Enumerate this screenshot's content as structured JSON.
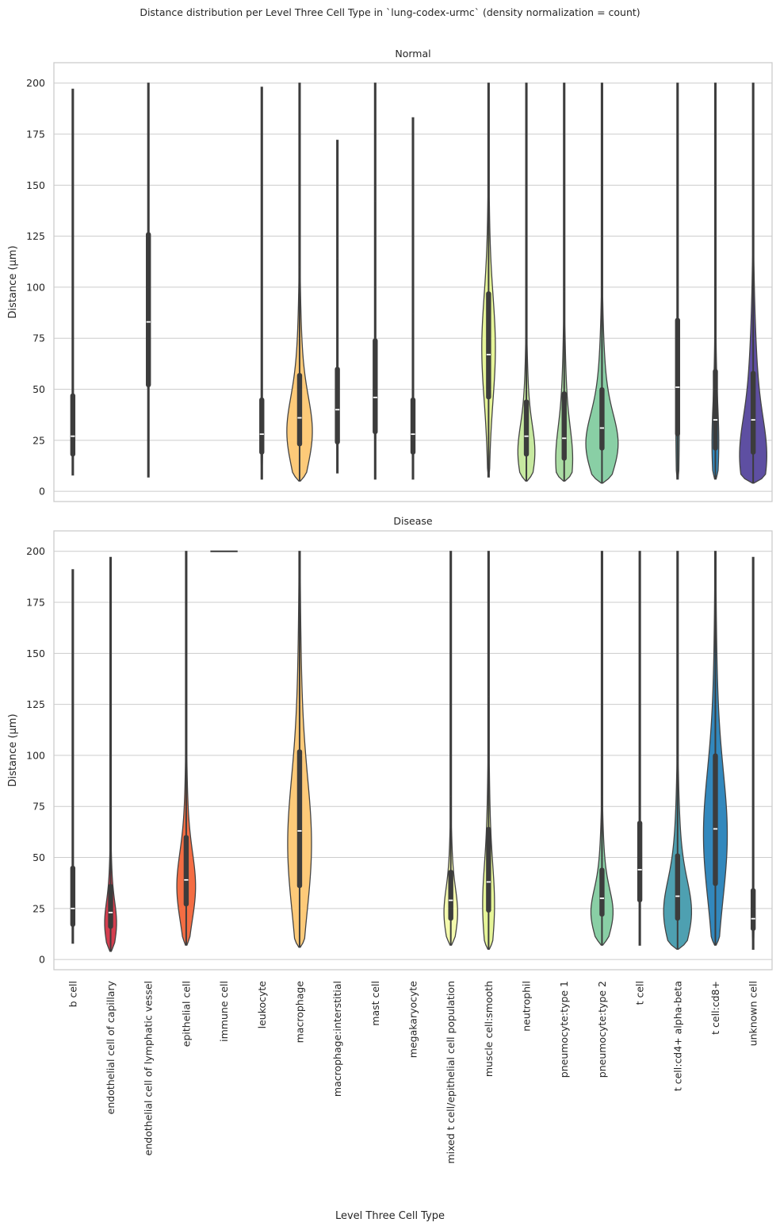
{
  "title": "Distance distribution per Level Three Cell Type in `lung-codex-urmc` (density normalization = count)",
  "xlabel": "Level Three Cell Type",
  "categories": [
    "b cell",
    "endothelial cell of capillary",
    "endothelial cell of lymphatic vessel",
    "epithelial cell",
    "immune cell",
    "leukocyte",
    "macrophage",
    "macrophage:interstitial",
    "mast cell",
    "megakaryocyte",
    "mixed t cell/epithelial cell population",
    "muscle cell:smooth",
    "neutrophil",
    "pneumocyte:type 1",
    "pneumocyte:type 2",
    "t cell",
    "t cell:cd4+ alpha-beta",
    "t cell:cd8+",
    "unknown cell"
  ],
  "palette": [
    "#9e0142",
    "#d53e4f",
    "#e8604c",
    "#f46d43",
    "#f99d59",
    "#fdae61",
    "#fdca79",
    "#fee08b",
    "#fff1a8",
    "#ffffbf",
    "#f4faad",
    "#e6f598",
    "#c7e9a0",
    "#abdda4",
    "#89cfa5",
    "#66c2a5",
    "#4ea0b1",
    "#3288bd",
    "#5e4fa2"
  ],
  "chart_data": [
    {
      "type": "violin",
      "title": "Normal",
      "ylabel": "Distance (µm)",
      "ylim": [
        -5,
        210
      ],
      "yticks": [
        0,
        25,
        50,
        75,
        100,
        125,
        150,
        175,
        200
      ],
      "grid": true,
      "series": [
        {
          "category": "b cell",
          "min": 8,
          "q1": 17,
          "median": 27,
          "q3": 48,
          "whisker_high": 93,
          "max": 197,
          "width": 0.02,
          "mode": 25
        },
        {
          "category": "endothelial cell of lymphatic vessel",
          "min": 7,
          "q1": 51,
          "median": 83,
          "q3": 127,
          "whisker_high": 200,
          "max": 200,
          "width": 0.03,
          "mode": 85
        },
        {
          "category": "leukocyte",
          "min": 6,
          "q1": 18,
          "median": 28,
          "q3": 46,
          "whisker_high": 86,
          "max": 198,
          "width": 0.05,
          "mode": 20
        },
        {
          "category": "macrophage",
          "min": 5,
          "q1": 22,
          "median": 36,
          "q3": 58,
          "whisker_high": 110,
          "max": 200,
          "width": 0.75,
          "mode": 28
        },
        {
          "category": "macrophage:interstitial",
          "min": 9,
          "q1": 23,
          "median": 40,
          "q3": 61,
          "whisker_high": 114,
          "max": 172,
          "width": 0.05,
          "mode": 35
        },
        {
          "category": "mast cell",
          "min": 6,
          "q1": 28,
          "median": 46,
          "q3": 75,
          "whisker_high": 142,
          "max": 200,
          "width": 0.05,
          "mode": 40
        },
        {
          "category": "megakaryocyte",
          "min": 6,
          "q1": 18,
          "median": 28,
          "q3": 46,
          "whisker_high": 87,
          "max": 183,
          "width": 0.05,
          "mode": 25
        },
        {
          "category": "muscle cell:smooth",
          "min": 7,
          "q1": 45,
          "median": 67,
          "q3": 98,
          "whisker_high": 175,
          "max": 200,
          "width": 0.4,
          "mode": 70
        },
        {
          "category": "neutrophil",
          "min": 5,
          "q1": 17,
          "median": 27,
          "q3": 45,
          "whisker_high": 86,
          "max": 200,
          "width": 0.5,
          "mode": 18
        },
        {
          "category": "pneumocyte:type 1",
          "min": 5,
          "q1": 15,
          "median": 26,
          "q3": 49,
          "whisker_high": 98,
          "max": 200,
          "width": 0.5,
          "mode": 14
        },
        {
          "category": "pneumocyte:type 2",
          "min": 4,
          "q1": 20,
          "median": 31,
          "q3": 51,
          "whisker_high": 101,
          "max": 200,
          "width": 0.95,
          "mode": 22
        },
        {
          "category": "t cell:cd4+ alpha-beta",
          "min": 6,
          "q1": 27,
          "median": 51,
          "q3": 85,
          "whisker_high": 169,
          "max": 200,
          "width": 0.1,
          "mode": 30
        },
        {
          "category": "t cell:cd8+",
          "min": 6,
          "q1": 20,
          "median": 35,
          "q3": 60,
          "whisker_high": 119,
          "max": 200,
          "width": 0.2,
          "mode": 22
        },
        {
          "category": "unknown cell",
          "min": 4,
          "q1": 18,
          "median": 35,
          "q3": 59,
          "whisker_high": 116,
          "max": 200,
          "width": 0.8,
          "mode": 15
        }
      ]
    },
    {
      "type": "violin",
      "title": "Disease",
      "ylabel": "Distance (µm)",
      "ylim": [
        -5,
        210
      ],
      "yticks": [
        0,
        25,
        50,
        75,
        100,
        125,
        150,
        175,
        200
      ],
      "grid": true,
      "series": [
        {
          "category": "b cell",
          "min": 8,
          "q1": 16,
          "median": 25,
          "q3": 46,
          "whisker_high": 90,
          "max": 191,
          "width": 0.05,
          "mode": 25
        },
        {
          "category": "endothelial cell of capillary",
          "min": 4,
          "q1": 15,
          "median": 23,
          "q3": 37,
          "whisker_high": 66,
          "max": 197,
          "width": 0.35,
          "mode": 17
        },
        {
          "category": "epithelial cell",
          "min": 7,
          "q1": 26,
          "median": 39,
          "q3": 61,
          "whisker_high": 120,
          "max": 200,
          "width": 0.55,
          "mode": 35
        },
        {
          "category": "immune cell",
          "min": 200,
          "q1": 200,
          "median": 200,
          "q3": 200,
          "whisker_high": 200,
          "max": 200,
          "width": 0.8,
          "mode": 200
        },
        {
          "category": "macrophage",
          "min": 6,
          "q1": 35,
          "median": 63,
          "q3": 103,
          "whisker_high": 200,
          "max": 200,
          "width": 0.7,
          "mode": 55
        },
        {
          "category": "mixed t cell/epithelial cell population",
          "min": 7,
          "q1": 19,
          "median": 29,
          "q3": 44,
          "whisker_high": 80,
          "max": 200,
          "width": 0.4,
          "mode": 22
        },
        {
          "category": "muscle cell:smooth",
          "min": 5,
          "q1": 23,
          "median": 38,
          "q3": 65,
          "whisker_high": 129,
          "max": 200,
          "width": 0.35,
          "mode": 25
        },
        {
          "category": "pneumocyte:type 2",
          "min": 7,
          "q1": 21,
          "median": 30,
          "q3": 45,
          "whisker_high": 80,
          "max": 200,
          "width": 0.65,
          "mode": 22
        },
        {
          "category": "t cell",
          "min": 7,
          "q1": 28,
          "median": 44,
          "q3": 68,
          "whisker_high": 127,
          "max": 200,
          "width": 0.05,
          "mode": 40
        },
        {
          "category": "t cell:cd4+ alpha-beta",
          "min": 5,
          "q1": 19,
          "median": 31,
          "q3": 52,
          "whisker_high": 97,
          "max": 200,
          "width": 0.82,
          "mode": 22
        },
        {
          "category": "t cell:cd8+",
          "min": 7,
          "q1": 36,
          "median": 64,
          "q3": 101,
          "whisker_high": 196,
          "max": 200,
          "width": 0.7,
          "mode": 60
        },
        {
          "category": "unknown cell",
          "min": 5,
          "q1": 14,
          "median": 20,
          "q3": 35,
          "whisker_high": 64,
          "max": 197,
          "width": 0.05,
          "mode": 15
        }
      ]
    }
  ]
}
